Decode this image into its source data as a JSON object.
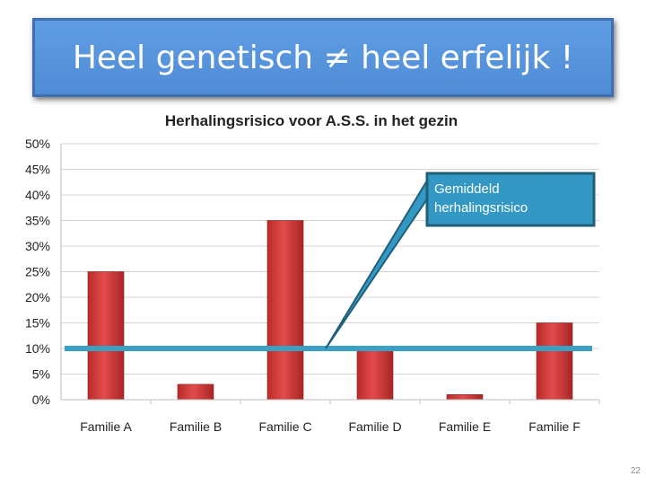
{
  "slide": {
    "title": "Heel genetisch ≠ heel erfelijk !",
    "page_number": "22"
  },
  "chart_data": {
    "type": "bar",
    "title": "Herhalingsrisico voor A.S.S. in het gezin",
    "categories": [
      "Familie A",
      "Familie B",
      "Familie C",
      "Familie D",
      "Familie E",
      "Familie F"
    ],
    "series": [
      {
        "values": [
          25,
          3,
          35,
          10,
          1,
          15
        ]
      }
    ],
    "ylim": [
      0,
      50
    ],
    "yticks": [
      0,
      5,
      10,
      15,
      20,
      25,
      30,
      35,
      40,
      45,
      50
    ],
    "ytick_labels": [
      "0%",
      "5%",
      "10%",
      "15%",
      "20%",
      "25%",
      "30%",
      "35%",
      "40%",
      "45%",
      "50%"
    ],
    "grid": true,
    "reference_line": {
      "value": 10,
      "color": "#3aa0c4"
    },
    "callout": {
      "text_lines": [
        "Gemiddeld",
        "herhalingsrisico"
      ],
      "fill": "#3399c4",
      "border": "#1f5f78"
    },
    "bar_color": "#d33f3f"
  }
}
